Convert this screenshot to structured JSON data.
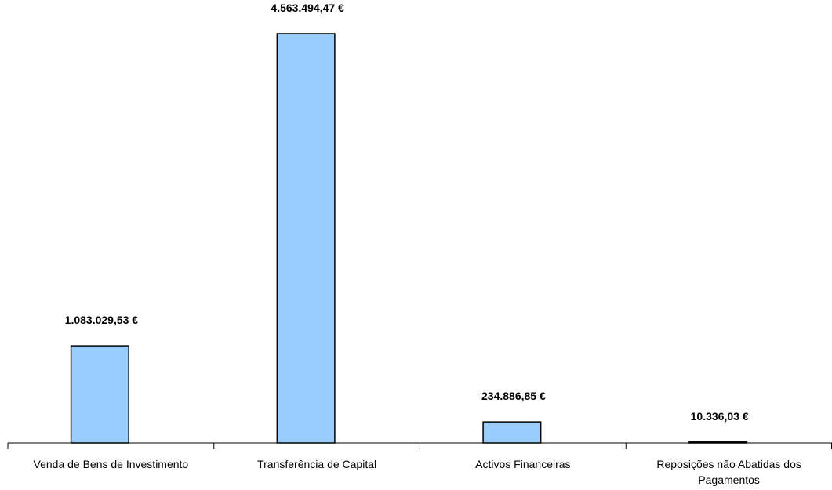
{
  "chart_data": {
    "type": "bar",
    "categories": [
      "Venda de Bens de Investimento",
      "Transferência de Capital",
      "Activos Financeiras",
      "Reposições não Abatidas dos Pagamentos"
    ],
    "values": [
      1083029.53,
      4563494.47,
      234886.85,
      10336.03
    ],
    "value_labels": [
      "1.083.029,53 €",
      "4.563.494,47 €",
      "234.886,85 €",
      "10.336,03 €"
    ],
    "color": "#99ccff"
  }
}
